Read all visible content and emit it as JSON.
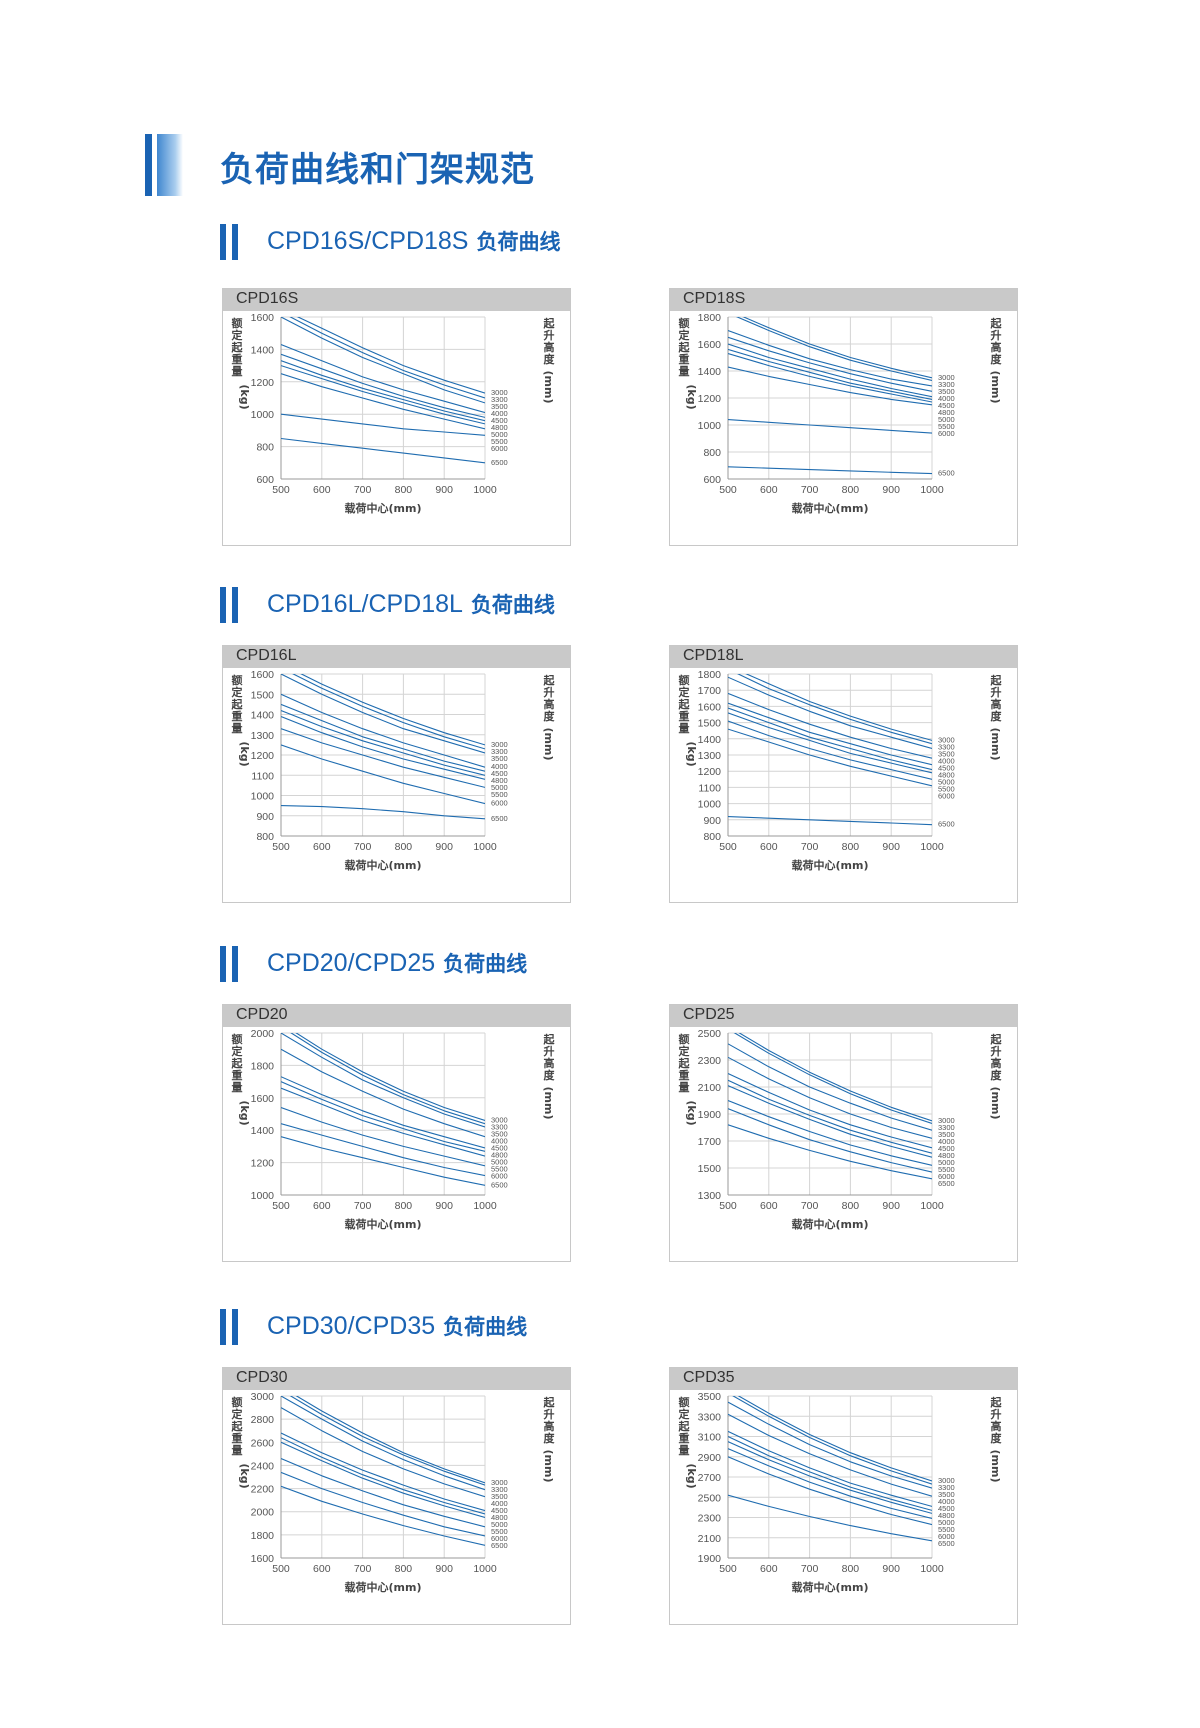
{
  "page_title": "负荷曲线和门架规范",
  "sections": [
    {
      "model": "CPD16S/CPD18S",
      "suffix": "负荷曲线"
    },
    {
      "model": "CPD16L/CPD18L",
      "suffix": "负荷曲线"
    },
    {
      "model": "CPD20/CPD25",
      "suffix": "负荷曲线"
    },
    {
      "model": "CPD30/CPD35",
      "suffix": "负荷曲线"
    }
  ],
  "axis_text": {
    "ylabel_chars": [
      "额",
      "定",
      "起",
      "重",
      "量"
    ],
    "ylabel_unit": "(kg)",
    "right_chars": [
      "起",
      "升",
      "高",
      "度"
    ],
    "right_unit": "(mm)",
    "xlabel": "载荷中心(mm)"
  },
  "colors": {
    "accent": "#1a63b3",
    "curve": "#1f6cb0",
    "header_bg": "#c9c9c9",
    "grid": "#d4d4d4"
  },
  "chart_data": [
    {
      "type": "line",
      "title": "CPD16S",
      "x": [
        500,
        600,
        700,
        800,
        900,
        1000
      ],
      "xlim": [
        500,
        1000
      ],
      "ylim": [
        600,
        1600
      ],
      "yticks": [
        600,
        800,
        1000,
        1200,
        1400,
        1600
      ],
      "xlabel": "载荷中心(mm)",
      "ylabel": "额定起重量(kg)",
      "right_label": "起升高度(mm)",
      "grid": true,
      "series": [
        {
          "name": "3000",
          "values": [
            1650,
            1530,
            1410,
            1300,
            1210,
            1130
          ]
        },
        {
          "name": "3300",
          "values": [
            1630,
            1500,
            1380,
            1270,
            1180,
            1100
          ]
        },
        {
          "name": "3500",
          "values": [
            1600,
            1470,
            1350,
            1250,
            1150,
            1070
          ]
        },
        {
          "name": "4000",
          "values": [
            1430,
            1330,
            1230,
            1150,
            1080,
            1010
          ]
        },
        {
          "name": "4500",
          "values": [
            1370,
            1280,
            1190,
            1110,
            1040,
            980
          ]
        },
        {
          "name": "4800",
          "values": [
            1330,
            1240,
            1160,
            1090,
            1020,
            960
          ]
        },
        {
          "name": "5000",
          "values": [
            1300,
            1220,
            1140,
            1070,
            1000,
            940
          ]
        },
        {
          "name": "5500",
          "values": [
            1250,
            1170,
            1100,
            1030,
            970,
            910
          ]
        },
        {
          "name": "6000",
          "values": [
            1000,
            970,
            940,
            910,
            890,
            870
          ]
        },
        {
          "name": "6500",
          "values": [
            850,
            820,
            790,
            760,
            730,
            700
          ]
        }
      ]
    },
    {
      "type": "line",
      "title": "CPD18S",
      "x": [
        500,
        600,
        700,
        800,
        900,
        1000
      ],
      "xlim": [
        500,
        1000
      ],
      "ylim": [
        600,
        1800
      ],
      "yticks": [
        600,
        800,
        1000,
        1200,
        1400,
        1600,
        1800
      ],
      "xlabel": "载荷中心(mm)",
      "ylabel": "额定起重量(kg)",
      "right_label": "起升高度(mm)",
      "grid": true,
      "series": [
        {
          "name": "3000",
          "values": [
            1850,
            1720,
            1600,
            1500,
            1420,
            1350
          ]
        },
        {
          "name": "3300",
          "values": [
            1830,
            1700,
            1580,
            1480,
            1400,
            1330
          ]
        },
        {
          "name": "3500",
          "values": [
            1700,
            1590,
            1490,
            1410,
            1340,
            1290
          ]
        },
        {
          "name": "4000",
          "values": [
            1650,
            1550,
            1460,
            1380,
            1310,
            1250
          ]
        },
        {
          "name": "4500",
          "values": [
            1600,
            1500,
            1420,
            1340,
            1270,
            1210
          ]
        },
        {
          "name": "4800",
          "values": [
            1560,
            1470,
            1390,
            1310,
            1250,
            1190
          ]
        },
        {
          "name": "5000",
          "values": [
            1530,
            1440,
            1360,
            1290,
            1230,
            1170
          ]
        },
        {
          "name": "5500",
          "values": [
            1430,
            1360,
            1300,
            1240,
            1190,
            1150
          ]
        },
        {
          "name": "6000",
          "values": [
            1040,
            1020,
            1000,
            980,
            960,
            940
          ]
        },
        {
          "name": "6500",
          "values": [
            690,
            680,
            670,
            660,
            650,
            640
          ]
        }
      ]
    },
    {
      "type": "line",
      "title": "CPD16L",
      "x": [
        500,
        600,
        700,
        800,
        900,
        1000
      ],
      "xlim": [
        500,
        1000
      ],
      "ylim": [
        800,
        1600
      ],
      "yticks": [
        800,
        900,
        1000,
        1100,
        1200,
        1300,
        1400,
        1500,
        1600
      ],
      "xlabel": "载荷中心(mm)",
      "ylabel": "额定起重量(kg)",
      "right_label": "起升高度(mm)",
      "grid": true,
      "series": [
        {
          "name": "3000",
          "values": [
            1650,
            1550,
            1460,
            1380,
            1310,
            1250
          ]
        },
        {
          "name": "3300",
          "values": [
            1630,
            1530,
            1440,
            1360,
            1290,
            1230
          ]
        },
        {
          "name": "3500",
          "values": [
            1600,
            1500,
            1410,
            1330,
            1270,
            1210
          ]
        },
        {
          "name": "4000",
          "values": [
            1500,
            1410,
            1330,
            1260,
            1200,
            1140
          ]
        },
        {
          "name": "4500",
          "values": [
            1450,
            1370,
            1290,
            1230,
            1170,
            1120
          ]
        },
        {
          "name": "4800",
          "values": [
            1420,
            1340,
            1270,
            1210,
            1150,
            1100
          ]
        },
        {
          "name": "5000",
          "values": [
            1390,
            1310,
            1240,
            1180,
            1130,
            1080
          ]
        },
        {
          "name": "5500",
          "values": [
            1330,
            1260,
            1200,
            1140,
            1090,
            1040
          ]
        },
        {
          "name": "6000",
          "values": [
            1250,
            1180,
            1120,
            1060,
            1010,
            960
          ]
        },
        {
          "name": "6500",
          "values": [
            950,
            945,
            935,
            920,
            900,
            885
          ]
        }
      ]
    },
    {
      "type": "line",
      "title": "CPD18L",
      "x": [
        500,
        600,
        700,
        800,
        900,
        1000
      ],
      "xlim": [
        500,
        1000
      ],
      "ylim": [
        800,
        1800
      ],
      "yticks": [
        800,
        900,
        1000,
        1100,
        1200,
        1300,
        1400,
        1500,
        1600,
        1700,
        1800
      ],
      "xlabel": "载荷中心(mm)",
      "ylabel": "额定起重量(kg)",
      "right_label": "起升高度(mm)",
      "grid": true,
      "series": [
        {
          "name": "3000",
          "values": [
            1850,
            1740,
            1630,
            1540,
            1460,
            1390
          ]
        },
        {
          "name": "3300",
          "values": [
            1830,
            1710,
            1610,
            1520,
            1440,
            1370
          ]
        },
        {
          "name": "3500",
          "values": [
            1780,
            1670,
            1570,
            1480,
            1410,
            1340
          ]
        },
        {
          "name": "4000",
          "values": [
            1680,
            1580,
            1490,
            1410,
            1340,
            1280
          ]
        },
        {
          "name": "4500",
          "values": [
            1620,
            1530,
            1440,
            1370,
            1300,
            1240
          ]
        },
        {
          "name": "4800",
          "values": [
            1590,
            1500,
            1410,
            1340,
            1270,
            1210
          ]
        },
        {
          "name": "5000",
          "values": [
            1560,
            1470,
            1390,
            1310,
            1250,
            1190
          ]
        },
        {
          "name": "5500",
          "values": [
            1510,
            1420,
            1340,
            1270,
            1210,
            1150
          ]
        },
        {
          "name": "6000",
          "values": [
            1460,
            1380,
            1300,
            1230,
            1170,
            1110
          ]
        },
        {
          "name": "6500",
          "values": [
            920,
            910,
            900,
            890,
            880,
            870
          ]
        }
      ]
    },
    {
      "type": "line",
      "title": "CPD20",
      "x": [
        500,
        600,
        700,
        800,
        900,
        1000
      ],
      "xlim": [
        500,
        1000
      ],
      "ylim": [
        1000,
        2000
      ],
      "yticks": [
        1000,
        1200,
        1400,
        1600,
        1800,
        2000
      ],
      "xlabel": "载荷中心(mm)",
      "ylabel": "额定起重量(kg)",
      "right_label": "起升高度(mm)",
      "grid": true,
      "series": [
        {
          "name": "3000",
          "values": [
            2060,
            1900,
            1760,
            1640,
            1540,
            1460
          ]
        },
        {
          "name": "3300",
          "values": [
            2040,
            1880,
            1740,
            1620,
            1520,
            1440
          ]
        },
        {
          "name": "3500",
          "values": [
            2000,
            1850,
            1710,
            1600,
            1500,
            1420
          ]
        },
        {
          "name": "4000",
          "values": [
            1900,
            1760,
            1640,
            1530,
            1440,
            1360
          ]
        },
        {
          "name": "4500",
          "values": [
            1730,
            1620,
            1520,
            1430,
            1360,
            1290
          ]
        },
        {
          "name": "4800",
          "values": [
            1700,
            1590,
            1490,
            1410,
            1330,
            1270
          ]
        },
        {
          "name": "5000",
          "values": [
            1660,
            1560,
            1460,
            1380,
            1310,
            1240
          ]
        },
        {
          "name": "5500",
          "values": [
            1540,
            1450,
            1370,
            1300,
            1240,
            1180
          ]
        },
        {
          "name": "6000",
          "values": [
            1440,
            1370,
            1300,
            1230,
            1170,
            1120
          ]
        },
        {
          "name": "6500",
          "values": [
            1360,
            1290,
            1230,
            1170,
            1110,
            1060
          ]
        }
      ]
    },
    {
      "type": "line",
      "title": "CPD25",
      "x": [
        500,
        600,
        700,
        800,
        900,
        1000
      ],
      "xlim": [
        500,
        1000
      ],
      "ylim": [
        1300,
        2500
      ],
      "yticks": [
        1300,
        1500,
        1700,
        1900,
        2100,
        2300,
        2500
      ],
      "xlabel": "载荷中心(mm)",
      "ylabel": "额定起重量(kg)",
      "right_label": "起升高度(mm)",
      "grid": true,
      "series": [
        {
          "name": "3000",
          "values": [
            2550,
            2370,
            2210,
            2070,
            1950,
            1850
          ]
        },
        {
          "name": "3300",
          "values": [
            2530,
            2350,
            2190,
            2050,
            1930,
            1830
          ]
        },
        {
          "name": "3500",
          "values": [
            2420,
            2250,
            2100,
            1980,
            1870,
            1780
          ]
        },
        {
          "name": "4000",
          "values": [
            2320,
            2160,
            2020,
            1900,
            1800,
            1720
          ]
        },
        {
          "name": "4500",
          "values": [
            2200,
            2060,
            1930,
            1820,
            1730,
            1650
          ]
        },
        {
          "name": "4800",
          "values": [
            2150,
            2010,
            1890,
            1780,
            1690,
            1610
          ]
        },
        {
          "name": "5000",
          "values": [
            2110,
            1980,
            1860,
            1750,
            1660,
            1580
          ]
        },
        {
          "name": "5500",
          "values": [
            2000,
            1880,
            1770,
            1670,
            1590,
            1520
          ]
        },
        {
          "name": "6000",
          "values": [
            1940,
            1820,
            1710,
            1620,
            1540,
            1470
          ]
        },
        {
          "name": "6500",
          "values": [
            1820,
            1720,
            1630,
            1550,
            1480,
            1420
          ]
        }
      ]
    },
    {
      "type": "line",
      "title": "CPD30",
      "x": [
        500,
        600,
        700,
        800,
        900,
        1000
      ],
      "xlim": [
        500,
        1000
      ],
      "ylim": [
        1600,
        3000
      ],
      "yticks": [
        1600,
        1800,
        2000,
        2200,
        2400,
        2600,
        2800,
        3000
      ],
      "xlabel": "载荷中心(mm)",
      "ylabel": "额定起重量(kg)",
      "right_label": "起升高度(mm)",
      "grid": true,
      "series": [
        {
          "name": "3000",
          "values": [
            3080,
            2870,
            2680,
            2510,
            2370,
            2250
          ]
        },
        {
          "name": "3300",
          "values": [
            3050,
            2840,
            2650,
            2490,
            2350,
            2230
          ]
        },
        {
          "name": "3500",
          "values": [
            3000,
            2800,
            2610,
            2450,
            2310,
            2190
          ]
        },
        {
          "name": "4000",
          "values": [
            2900,
            2700,
            2520,
            2370,
            2240,
            2130
          ]
        },
        {
          "name": "4500",
          "values": [
            2680,
            2510,
            2360,
            2230,
            2110,
            2010
          ]
        },
        {
          "name": "4800",
          "values": [
            2640,
            2470,
            2320,
            2190,
            2080,
            1980
          ]
        },
        {
          "name": "5000",
          "values": [
            2600,
            2440,
            2290,
            2160,
            2050,
            1950
          ]
        },
        {
          "name": "5500",
          "values": [
            2460,
            2310,
            2180,
            2060,
            1960,
            1870
          ]
        },
        {
          "name": "6000",
          "values": [
            2340,
            2200,
            2080,
            1970,
            1870,
            1790
          ]
        },
        {
          "name": "6500",
          "values": [
            2220,
            2090,
            1980,
            1880,
            1790,
            1710
          ]
        }
      ]
    },
    {
      "type": "line",
      "title": "CPD35",
      "x": [
        500,
        600,
        700,
        800,
        900,
        1000
      ],
      "xlim": [
        500,
        1000
      ],
      "ylim": [
        1900,
        3500
      ],
      "yticks": [
        1900,
        2100,
        2300,
        2500,
        2700,
        2900,
        3100,
        3300,
        3500
      ],
      "xlabel": "载荷中心(mm)",
      "ylabel": "额定起重量(kg)",
      "right_label": "起升高度(mm)",
      "grid": true,
      "series": [
        {
          "name": "3000",
          "values": [
            3560,
            3330,
            3120,
            2940,
            2790,
            2660
          ]
        },
        {
          "name": "3300",
          "values": [
            3530,
            3300,
            3090,
            2910,
            2760,
            2630
          ]
        },
        {
          "name": "3500",
          "values": [
            3440,
            3220,
            3020,
            2850,
            2710,
            2590
          ]
        },
        {
          "name": "4000",
          "values": [
            3320,
            3110,
            2930,
            2770,
            2630,
            2510
          ]
        },
        {
          "name": "4500",
          "values": [
            3150,
            2960,
            2790,
            2640,
            2520,
            2410
          ]
        },
        {
          "name": "4800",
          "values": [
            3100,
            2910,
            2750,
            2600,
            2480,
            2370
          ]
        },
        {
          "name": "5000",
          "values": [
            3050,
            2870,
            2710,
            2570,
            2450,
            2340
          ]
        },
        {
          "name": "5500",
          "values": [
            2980,
            2810,
            2650,
            2510,
            2390,
            2290
          ]
        },
        {
          "name": "6000",
          "values": [
            2900,
            2730,
            2580,
            2450,
            2330,
            2230
          ]
        },
        {
          "name": "6500",
          "values": [
            2520,
            2410,
            2310,
            2220,
            2140,
            2070
          ]
        }
      ]
    }
  ]
}
